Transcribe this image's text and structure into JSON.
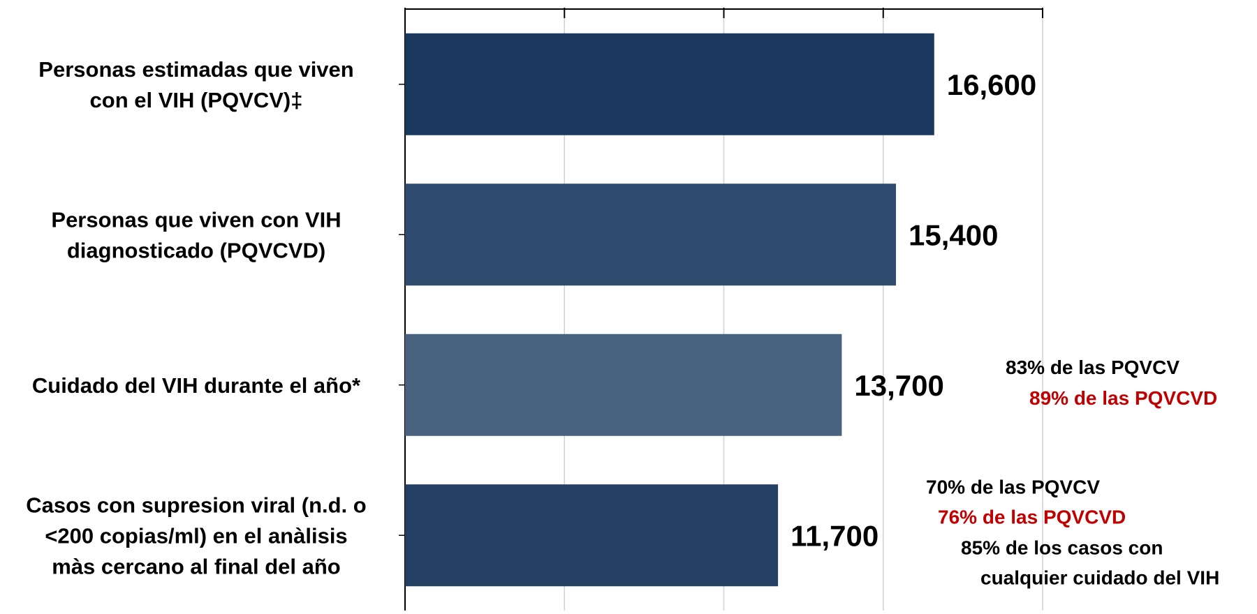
{
  "chart_data": {
    "type": "bar",
    "orientation": "horizontal",
    "xlim": [
      0,
      20000
    ],
    "grid": true,
    "tick_labels_shown": false,
    "categories": [
      [
        "Personas estimadas que viven",
        "con el VIH (PQVCV)‡"
      ],
      [
        "Personas que viven con VIH",
        "diagnosticado (PQVCVD)"
      ],
      [
        "Cuidado del VIH durante el año*"
      ],
      [
        "Casos con supresion viral (n.d. o",
        "<200 copias/ml) en el anàlisis",
        "màs cercano al final del año"
      ]
    ],
    "values": [
      16600,
      15400,
      13700,
      11700
    ],
    "value_labels": [
      "16,600",
      "15,400",
      "13,700",
      "11,700"
    ],
    "bar_colors": [
      "#1b385e",
      "#2f4c6f",
      "#49627f",
      "#243f62"
    ],
    "annotations": [
      {
        "bar_index": 2,
        "lines": [
          {
            "text": "83% de las PQVCV",
            "color": "#000000"
          },
          {
            "text": "89% de las PQVCVD",
            "color": "#c00000"
          }
        ]
      },
      {
        "bar_index": 3,
        "lines": [
          {
            "text": "70% de las PQVCV",
            "color": "#000000"
          },
          {
            "text": "76% de las PQVCVD",
            "color": "#c00000"
          },
          {
            "text": "85% de los casos con",
            "color": "#000000"
          },
          {
            "text": "cualquier cuidado del VIH",
            "color": "#000000"
          }
        ]
      }
    ]
  }
}
